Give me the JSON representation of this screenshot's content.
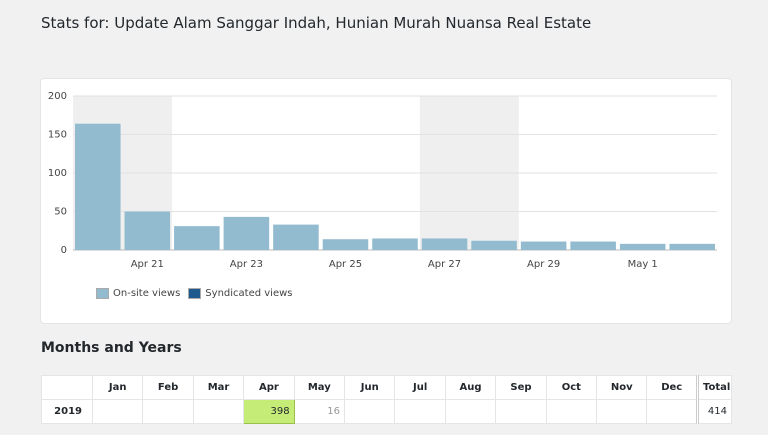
{
  "header": {
    "title": "Stats for: Update Alam Sanggar Indah, Hunian Murah Nuansa Real Estate"
  },
  "chart_data": {
    "type": "bar",
    "categories": [
      "Apr 20",
      "Apr 21",
      "Apr 22",
      "Apr 23",
      "Apr 24",
      "Apr 25",
      "Apr 26",
      "Apr 27",
      "Apr 28",
      "Apr 29",
      "Apr 30",
      "May 1",
      "May 2"
    ],
    "x_tick_labels": [
      "Apr 21",
      "Apr 23",
      "Apr 25",
      "Apr 27",
      "Apr 29",
      "May 1"
    ],
    "series": [
      {
        "name": "On-site views",
        "values": [
          164,
          50,
          31,
          43,
          33,
          14,
          15,
          15,
          12,
          11,
          11,
          8,
          8
        ],
        "color": "#92bbd0"
      },
      {
        "name": "Syndicated views",
        "values": [
          0,
          0,
          0,
          0,
          0,
          0,
          0,
          0,
          0,
          0,
          0,
          0,
          0
        ],
        "color": "#1f5a8e"
      }
    ],
    "y_ticks": [
      "0",
      "50",
      "100",
      "150",
      "200"
    ],
    "ylim": [
      0,
      200
    ],
    "grid": true,
    "weekend_bands": [
      [
        "Apr 20",
        "Apr 21"
      ],
      [
        "Apr 27",
        "Apr 28"
      ]
    ],
    "legend_placement": "bottom-left"
  },
  "months_section": {
    "title": "Months and Years",
    "columns": [
      "Jan",
      "Feb",
      "Mar",
      "Apr",
      "May",
      "Jun",
      "Jul",
      "Aug",
      "Sep",
      "Oct",
      "Nov",
      "Dec"
    ],
    "total_label": "Total",
    "rows": [
      {
        "year": "2019",
        "values": [
          "",
          "",
          "",
          "398",
          "16",
          "",
          "",
          "",
          "",
          "",
          "",
          ""
        ],
        "total": "414"
      }
    ],
    "highlight_color": "#c6ec78"
  }
}
